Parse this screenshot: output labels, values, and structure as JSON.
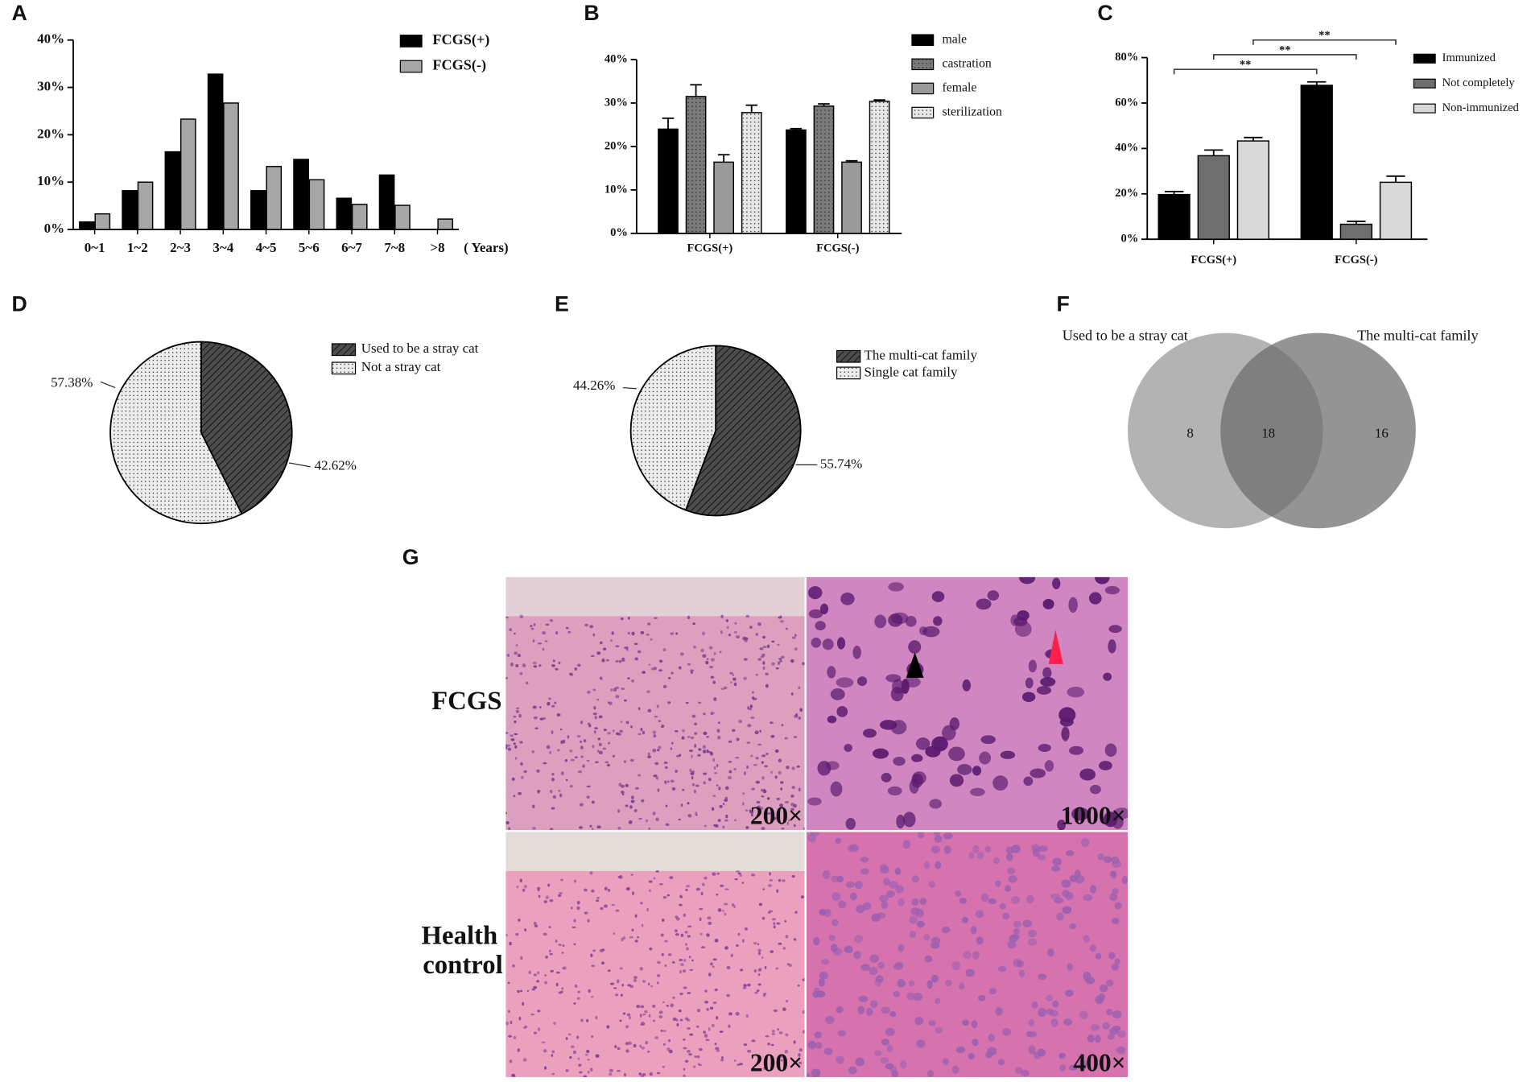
{
  "chart_data": [
    {
      "type": "bar",
      "panel": "A",
      "xlabel": "( Years)",
      "categories": [
        "0~1",
        "1~2",
        "2~3",
        "3~4",
        "4~5",
        "5~6",
        "6~7",
        "7~8",
        ">8"
      ],
      "series": [
        {
          "name": "FCGS(+)",
          "color": "#000000",
          "values": [
            1.6,
            8.2,
            16.4,
            32.8,
            8.2,
            14.8,
            6.6,
            11.5,
            0
          ]
        },
        {
          "name": "FCGS(-)",
          "color": "#a6a6a6",
          "values": [
            3.3,
            10,
            23.3,
            26.7,
            13.3,
            10.5,
            5.3,
            5.1,
            2.2
          ]
        }
      ],
      "ylim": [
        0,
        40
      ],
      "yticks": [
        {
          "value": 0,
          "label": "0%"
        },
        {
          "value": 10,
          "label": "10%"
        },
        {
          "value": 20,
          "label": "20%"
        },
        {
          "value": 30,
          "label": "30%"
        },
        {
          "value": 40,
          "label": "40%"
        }
      ]
    },
    {
      "type": "bar",
      "panel": "B",
      "categories": [
        "FCGS(+)",
        "FCGS(-)"
      ],
      "series": [
        {
          "name": "male",
          "color": "#000000",
          "values": [
            24,
            23.8
          ],
          "errors": [
            2.5,
            0.3
          ]
        },
        {
          "name": "castration",
          "color": "#7a7a7a",
          "pattern": "dots",
          "values": [
            31.5,
            29.3
          ],
          "errors": [
            2.7,
            0.5
          ]
        },
        {
          "name": "female",
          "color": "#9a9a9a",
          "values": [
            16.4,
            16.4
          ],
          "errors": [
            1.7,
            0.3
          ]
        },
        {
          "name": "sterilization",
          "color": "#e6e6e6",
          "pattern": "dots",
          "values": [
            27.8,
            30.4
          ],
          "errors": [
            1.7,
            0.3
          ]
        }
      ],
      "ylim": [
        0,
        40
      ],
      "yticks": [
        {
          "value": 0,
          "label": "0%"
        },
        {
          "value": 10,
          "label": "10%"
        },
        {
          "value": 20,
          "label": "20%"
        },
        {
          "value": 30,
          "label": "30%"
        },
        {
          "value": 40,
          "label": "40%"
        }
      ]
    },
    {
      "type": "bar",
      "panel": "C",
      "categories": [
        "FCGS(+)",
        "FCGS(-)"
      ],
      "series": [
        {
          "name": "Immunized",
          "color": "#000000",
          "values": [
            19.7,
            67.8
          ],
          "errors": [
            1.3,
            1.5
          ],
          "significance": "**"
        },
        {
          "name": "Not completely",
          "color": "#6e6e6e",
          "values": [
            36.8,
            6.6
          ],
          "errors": [
            2.5,
            1.3
          ],
          "significance": "**"
        },
        {
          "name": "Non-immunized",
          "color": "#d9d9d9",
          "values": [
            43.3,
            25.1
          ],
          "errors": [
            1.5,
            2.7
          ],
          "significance": "**"
        }
      ],
      "ylim": [
        0,
        80
      ],
      "yticks": [
        {
          "value": 0,
          "label": "0%"
        },
        {
          "value": 20,
          "label": "20%"
        },
        {
          "value": 40,
          "label": "40%"
        },
        {
          "value": 60,
          "label": "60%"
        },
        {
          "value": 80,
          "label": "80%"
        }
      ]
    },
    {
      "type": "pie",
      "panel": "D",
      "categories": [
        "Used to be a stray cat",
        "Not a stray cat"
      ],
      "values": [
        42.62,
        57.38
      ],
      "value_labels": [
        "42.62%",
        "57.38%"
      ],
      "colors": [
        "#4d4d4d",
        "#ececec"
      ],
      "patterns": [
        "hatch",
        "dots"
      ]
    },
    {
      "type": "pie",
      "panel": "E",
      "categories": [
        "The multi-cat family",
        "Single cat family"
      ],
      "values": [
        55.74,
        44.26
      ],
      "value_labels": [
        "55.74%",
        "44.26%"
      ],
      "colors": [
        "#4d4d4d",
        "#ececec"
      ],
      "patterns": [
        "hatch",
        "dots"
      ]
    },
    {
      "type": "venn",
      "panel": "F",
      "sets": [
        "Used to be a stray cat",
        "The multi-cat family"
      ],
      "colors": [
        "#b3b3b3",
        "#6b6b6b"
      ],
      "values": [
        8,
        18,
        16
      ]
    }
  ],
  "histology": {
    "panel": "G",
    "rows": [
      "FCGS",
      "Health control"
    ],
    "magnifications": [
      [
        "200×",
        "1000×"
      ],
      [
        "200×",
        "400×"
      ]
    ]
  }
}
